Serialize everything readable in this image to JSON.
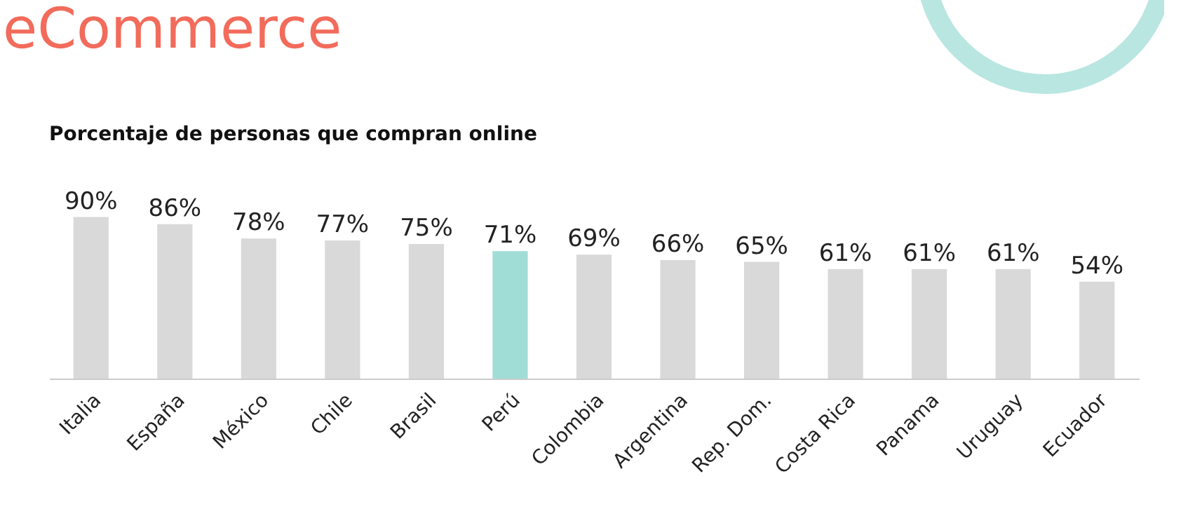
{
  "chart_data": {
    "type": "bar",
    "title": "eCommerce",
    "subtitle": "Porcentaje de personas que compran online",
    "categories": [
      "Italia",
      "España",
      "México",
      "Chile",
      "Brasil",
      "Perú",
      "Colombia",
      "Argentina",
      "Rep. Dom.",
      "Costa Rica",
      "Panama",
      "Uruguay",
      "Ecuador"
    ],
    "values": [
      90,
      86,
      78,
      77,
      75,
      71,
      69,
      66,
      65,
      61,
      61,
      61,
      54
    ],
    "colors": [
      "#d9d9d9",
      "#d9d9d9",
      "#d9d9d9",
      "#d9d9d9",
      "#d9d9d9",
      "#a0ddd6",
      "#d9d9d9",
      "#d9d9d9",
      "#d9d9d9",
      "#d9d9d9",
      "#d9d9d9",
      "#d9d9d9",
      "#d9d9d9"
    ],
    "value_labels": [
      "90%",
      "86%",
      "78%",
      "77%",
      "75%",
      "71%",
      "69%",
      "66%",
      "65%",
      "61%",
      "61%",
      "61%",
      "54%"
    ]
  }
}
